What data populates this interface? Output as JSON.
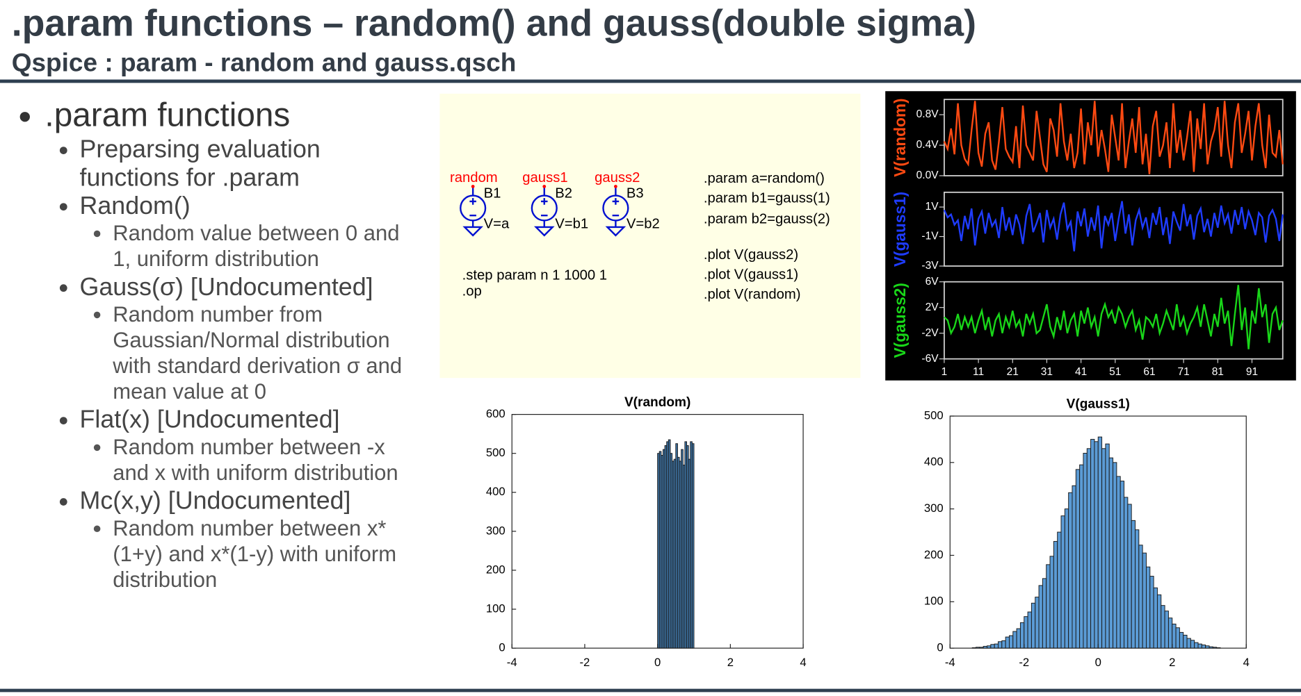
{
  "header": {
    "title": ".param functions – random() and gauss(double sigma)",
    "subtitle": "Qspice : param - random and gauss.qsch"
  },
  "bullets": [
    {
      "text": ".param functions",
      "items": [
        {
          "text": "Preparsing evaluation functions for .param"
        },
        {
          "text": "Random()",
          "items": [
            {
              "text": "Random value between 0 and 1, uniform distribution"
            }
          ]
        },
        {
          "text": "Gauss(σ) [Undocumented]",
          "items": [
            {
              "text": "Random number from Gaussian/Normal distribution with standard derivation σ and mean value at 0"
            }
          ]
        },
        {
          "text": "Flat(x) [Undocumented]",
          "items": [
            {
              "text": "Random number between -x and x with uniform distribution"
            }
          ]
        },
        {
          "text": "Mc(x,y) [Undocumented]",
          "items": [
            {
              "text": "Random number between x*(1+y) and x*(1-y) with uniform distribution"
            }
          ]
        }
      ]
    }
  ],
  "schematic": {
    "nets": [
      "random",
      "gauss1",
      "gauss2"
    ],
    "sources": [
      {
        "name": "B1",
        "value": "V=a"
      },
      {
        "name": "B2",
        "value": "V=b1"
      },
      {
        "name": "B3",
        "value": "V=b2"
      }
    ],
    "directives_left": [
      ".step param n 1 1000 1",
      ".op"
    ],
    "directives_right": [
      ".param a=random()",
      ".param b1=gauss(1)",
      ".param b2=gauss(2)",
      ".plot V(gauss2)",
      ".plot V(gauss1)",
      ".plot V(random)"
    ]
  },
  "chart_data": [
    {
      "type": "line",
      "background": "#000000",
      "x": [
        1,
        2,
        3,
        4,
        5,
        6,
        7,
        8,
        9,
        10,
        11,
        12,
        13,
        14,
        15,
        16,
        17,
        18,
        19,
        20,
        21,
        22,
        23,
        24,
        25,
        26,
        27,
        28,
        29,
        30,
        31,
        32,
        33,
        34,
        35,
        36,
        37,
        38,
        39,
        40,
        41,
        42,
        43,
        44,
        45,
        46,
        47,
        48,
        49,
        50,
        51,
        52,
        53,
        54,
        55,
        56,
        57,
        58,
        59,
        60,
        61,
        62,
        63,
        64,
        65,
        66,
        67,
        68,
        69,
        70,
        71,
        72,
        73,
        74,
        75,
        76,
        77,
        78,
        79,
        80,
        81,
        82,
        83,
        84,
        85,
        86,
        87,
        88,
        89,
        90,
        91,
        92,
        93,
        94,
        95,
        96,
        97,
        98,
        99,
        100
      ],
      "xlim": [
        1,
        100
      ],
      "xticks": [
        1,
        11,
        21,
        31,
        41,
        51,
        61,
        71,
        81,
        91
      ],
      "series": [
        {
          "name": "V(random)",
          "color": "#ff4a12",
          "ylim": [
            0,
            1
          ],
          "yticks": [
            {
              "value": 0.8,
              "label": "0.8V"
            },
            {
              "value": 0.4,
              "label": "0.4V"
            },
            {
              "value": 0,
              "label": "0.0V"
            }
          ],
          "values": [
            0.45,
            0.35,
            0.62,
            0.28,
            0.95,
            0.4,
            0.22,
            0.15,
            0.6,
            0.98,
            0.3,
            0.12,
            0.55,
            0.7,
            0.2,
            0.08,
            0.45,
            0.9,
            0.35,
            0.25,
            0.18,
            0.65,
            0.1,
            0.92,
            0.4,
            0.3,
            0.2,
            0.85,
            0.5,
            0.15,
            0.05,
            0.75,
            0.6,
            0.25,
            0.95,
            0.45,
            0.2,
            0.55,
            0.1,
            0.3,
            0.88,
            0.15,
            0.7,
            0.4,
            0.98,
            0.25,
            0.6,
            0.35,
            0.05,
            0.8,
            0.5,
            0.2,
            0.95,
            0.1,
            0.45,
            0.75,
            0.3,
            0.9,
            0.15,
            0.55,
            0.02,
            0.65,
            0.85,
            0.25,
            0.4,
            0.7,
            0.1,
            0.95,
            0.3,
            0.6,
            0.2,
            0.5,
            0.85,
            0.05,
            0.75,
            0.35,
            0.95,
            0.15,
            0.45,
            0.6,
            0.9,
            0.25,
            0.98,
            0.4,
            0.1,
            0.7,
            0.95,
            0.3,
            0.55,
            0.85,
            0.2,
            0.65,
            0.95,
            0.4,
            0.1,
            0.8,
            0.3,
            0.25,
            0.6,
            0.15
          ]
        },
        {
          "name": "V(gauss1)",
          "color": "#1f3cff",
          "ylim": [
            -3,
            2
          ],
          "yticks": [
            {
              "value": 1,
              "label": "1V"
            },
            {
              "value": -1,
              "label": "-1V"
            },
            {
              "value": -3,
              "label": "-3V"
            }
          ],
          "values": [
            0.8,
            0.3,
            0.5,
            -0.2,
            0.1,
            -1.3,
            0.4,
            -0.5,
            0.9,
            -1.6,
            0.2,
            0.7,
            -0.8,
            0.6,
            -0.3,
            0.1,
            -1.1,
            1.0,
            -0.6,
            0.3,
            -0.9,
            0.5,
            -0.2,
            -1.5,
            0.4,
            1.2,
            -0.7,
            -0.1,
            0.6,
            -1.4,
            0.8,
            -0.4,
            0.2,
            -1.2,
            0.5,
            1.3,
            -0.5,
            0.0,
            -2.0,
            0.7,
            -0.3,
            0.9,
            -1.0,
            0.3,
            -0.6,
            1.1,
            -1.8,
            0.4,
            -0.2,
            0.6,
            -1.3,
            0.2,
            1.4,
            -0.8,
            0.5,
            -1.6,
            0.1,
            0.8,
            -0.4,
            0.3,
            -1.1,
            0.6,
            -0.2,
            1.0,
            -0.9,
            0.3,
            -1.5,
            0.7,
            0.0,
            -0.6,
            1.2,
            -0.3,
            0.5,
            -1.2,
            0.4,
            0.9,
            -0.7,
            0.2,
            -1.0,
            0.6,
            -0.4,
            1.1,
            -0.1,
            0.5,
            -0.8,
            0.8,
            -0.2,
            1.0,
            -0.5,
            0.7,
            0.1,
            -0.9,
            0.6,
            0.3,
            -1.4,
            0.4,
            0.8,
            0.2,
            -1.3,
            0.5
          ]
        },
        {
          "name": "V(gauss2)",
          "color": "#19d619",
          "ylim": [
            -6,
            6
          ],
          "yticks": [
            {
              "value": 6,
              "label": "6V"
            },
            {
              "value": 2,
              "label": "2V"
            },
            {
              "value": -2,
              "label": "-2V"
            },
            {
              "value": -6,
              "label": "-6V"
            }
          ],
          "values": [
            0.5,
            0.0,
            -2.0,
            -1.0,
            1.0,
            -1.5,
            0.5,
            -1.0,
            0.5,
            -2.0,
            0.0,
            1.5,
            -1.5,
            0.5,
            -2.5,
            0.0,
            1.0,
            -2.0,
            0.5,
            -1.0,
            1.5,
            -1.0,
            0.0,
            -2.5,
            1.0,
            -0.5,
            1.0,
            -2.0,
            -1.5,
            0.5,
            2.5,
            -1.0,
            -2.5,
            0.5,
            -1.5,
            1.5,
            -2.0,
            0.0,
            1.0,
            -2.5,
            1.5,
            -0.5,
            2.0,
            -1.0,
            0.5,
            -2.5,
            1.0,
            2.5,
            0.5,
            1.5,
            -0.5,
            2.0,
            1.0,
            -1.0,
            0.5,
            1.5,
            -1.5,
            0.0,
            -3.0,
            0.5,
            0.0,
            -1.0,
            1.0,
            -2.0,
            -0.5,
            1.5,
            0.0,
            -1.5,
            2.5,
            -1.0,
            0.5,
            -2.0,
            -0.5,
            0.5,
            2.0,
            -1.0,
            2.5,
            0.0,
            -2.5,
            1.0,
            -1.0,
            3.5,
            -0.5,
            1.5,
            -4.0,
            1.0,
            5.5,
            -1.5,
            2.0,
            -4.5,
            1.5,
            -0.5,
            5.0,
            0.5,
            2.5,
            -3.5,
            1.0,
            2.0,
            -1.5,
            0.0
          ]
        }
      ]
    },
    {
      "type": "histogram",
      "title": "V(random)",
      "color": "#3f76a8",
      "bins": [
        0,
        0.05,
        0.1,
        0.15,
        0.2,
        0.25,
        0.3,
        0.35,
        0.4,
        0.45,
        0.5,
        0.55,
        0.6,
        0.65,
        0.7,
        0.75,
        0.8,
        0.85,
        0.9,
        0.95,
        1
      ],
      "values": [
        500,
        505,
        495,
        510,
        520,
        530,
        535,
        500,
        480,
        485,
        525,
        490,
        480,
        510,
        470,
        530,
        520,
        485,
        530,
        525
      ],
      "xlim": [
        -4,
        4
      ],
      "xticks": [
        -4,
        -2,
        0,
        2,
        4
      ],
      "ylim": [
        0,
        600
      ],
      "yticks": [
        0,
        100,
        200,
        300,
        400,
        500,
        600
      ]
    },
    {
      "type": "histogram",
      "title": "V(gauss1)",
      "color": "#5b9bd5",
      "bins": [
        -3.4,
        -3.3,
        -3.2,
        -3.1,
        -3.0,
        -2.9,
        -2.8,
        -2.7,
        -2.6,
        -2.5,
        -2.4,
        -2.3,
        -2.2,
        -2.1,
        -2.0,
        -1.9,
        -1.8,
        -1.7,
        -1.6,
        -1.5,
        -1.4,
        -1.3,
        -1.2,
        -1.1,
        -1.0,
        -0.9,
        -0.8,
        -0.7,
        -0.6,
        -0.5,
        -0.4,
        -0.3,
        -0.2,
        -0.1,
        0,
        0.1,
        0.2,
        0.3,
        0.4,
        0.5,
        0.6,
        0.7,
        0.8,
        0.9,
        1.0,
        1.1,
        1.2,
        1.3,
        1.4,
        1.5,
        1.6,
        1.7,
        1.8,
        1.9,
        2.0,
        2.1,
        2.2,
        2.3,
        2.4,
        2.5,
        2.6,
        2.7,
        2.8,
        2.9,
        3.0,
        3.1,
        3.2,
        3.3
      ],
      "values": [
        1,
        2,
        2,
        4,
        5,
        8,
        9,
        14,
        16,
        24,
        27,
        36,
        42,
        55,
        68,
        78,
        97,
        110,
        135,
        150,
        180,
        198,
        230,
        250,
        285,
        300,
        335,
        350,
        385,
        395,
        420,
        430,
        450,
        445,
        455,
        430,
        440,
        410,
        400,
        370,
        360,
        325,
        310,
        275,
        255,
        222,
        205,
        175,
        155,
        130,
        115,
        92,
        80,
        65,
        52,
        44,
        34,
        28,
        21,
        17,
        12,
        9,
        7,
        5,
        3,
        2,
        1
      ],
      "xlim": [
        -4,
        4
      ],
      "xticks": [
        -4,
        -2,
        0,
        2,
        4
      ],
      "ylim": [
        0,
        500
      ],
      "yticks": [
        0,
        100,
        200,
        300,
        400,
        500
      ]
    }
  ]
}
